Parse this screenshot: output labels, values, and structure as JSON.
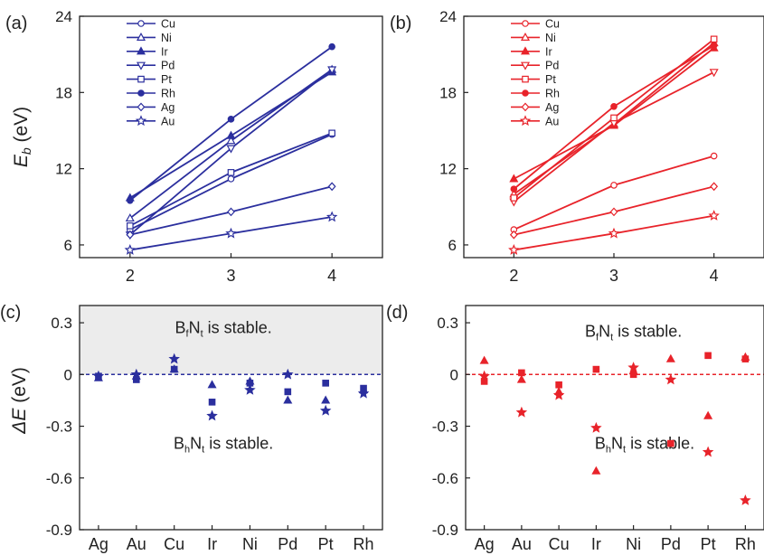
{
  "chart_data": [
    {
      "panel_label": "(a)",
      "type": "line",
      "color": "#2b2f9e",
      "ylabel_main": "E",
      "ylabel_sub": "b",
      "ylabel_unit": " (eV)",
      "x": [
        2,
        3,
        4
      ],
      "xlim": [
        1.5,
        4.5
      ],
      "ylim": [
        5,
        24
      ],
      "x_ticks": [
        2,
        3,
        4
      ],
      "y_ticks": [
        6,
        12,
        18,
        24
      ],
      "legend_position": "top-left",
      "series": [
        {
          "name": "Cu",
          "marker": "circle-open",
          "values": [
            7.2,
            11.2,
            14.7
          ]
        },
        {
          "name": "Ni",
          "marker": "triangle-up-open",
          "values": [
            8.1,
            14.2,
            19.8
          ]
        },
        {
          "name": "Ir",
          "marker": "triangle-up-filled",
          "values": [
            9.7,
            14.6,
            19.6
          ]
        },
        {
          "name": "Pd",
          "marker": "triangle-down-open",
          "values": [
            6.8,
            13.6,
            19.8
          ]
        },
        {
          "name": "Pt",
          "marker": "square-open",
          "values": [
            7.5,
            11.7,
            14.8
          ]
        },
        {
          "name": "Rh",
          "marker": "circle-filled",
          "values": [
            9.5,
            15.9,
            21.6
          ]
        },
        {
          "name": "Ag",
          "marker": "diamond-open",
          "values": [
            6.8,
            8.6,
            10.6
          ]
        },
        {
          "name": "Au",
          "marker": "star-open",
          "values": [
            5.6,
            6.9,
            8.2
          ]
        }
      ]
    },
    {
      "panel_label": "(b)",
      "type": "line",
      "color": "#e8232a",
      "x": [
        2,
        3,
        4
      ],
      "xlim": [
        1.5,
        4.5
      ],
      "ylim": [
        5,
        24
      ],
      "x_ticks": [
        2,
        3,
        4
      ],
      "y_ticks": [
        6,
        12,
        18,
        24
      ],
      "legend_position": "top-left",
      "series": [
        {
          "name": "Cu",
          "marker": "circle-open",
          "values": [
            7.2,
            10.7,
            13.0
          ]
        },
        {
          "name": "Ni",
          "marker": "triangle-up-open",
          "values": [
            10.0,
            15.5,
            21.9
          ]
        },
        {
          "name": "Ir",
          "marker": "triangle-up-filled",
          "values": [
            11.2,
            15.4,
            21.5
          ]
        },
        {
          "name": "Pd",
          "marker": "triangle-down-open",
          "values": [
            9.4,
            15.6,
            19.6
          ]
        },
        {
          "name": "Pt",
          "marker": "square-open",
          "values": [
            9.7,
            16.0,
            22.2
          ]
        },
        {
          "name": "Rh",
          "marker": "circle-filled",
          "values": [
            10.4,
            16.9,
            21.7
          ]
        },
        {
          "name": "Ag",
          "marker": "diamond-open",
          "values": [
            6.8,
            8.6,
            10.6
          ]
        },
        {
          "name": "Au",
          "marker": "star-open",
          "values": [
            5.6,
            6.9,
            8.3
          ]
        }
      ]
    },
    {
      "panel_label": "(c)",
      "type": "scatter",
      "color": "#2b2f9e",
      "ylabel_main": "ΔE",
      "ylabel_unit": " (eV)",
      "categories": [
        "Ag",
        "Au",
        "Cu",
        "Ir",
        "Ni",
        "Pd",
        "Pt",
        "Rh"
      ],
      "ylim": [
        -0.9,
        0.4
      ],
      "y_ticks": [
        0.3,
        0,
        -0.3,
        -0.6,
        -0.9
      ],
      "y_tick_labels": [
        "0.3",
        "0",
        "-0.3",
        "-0.6",
        "-0.9"
      ],
      "shaded_above": 0,
      "annotations": [
        {
          "main": "B",
          "sub": "f",
          "main2": "N",
          "sub2": "t",
          "tail": " is stable.",
          "at": [
            3.3,
            0.24
          ]
        },
        {
          "main": "B",
          "sub": "h",
          "main2": "N",
          "sub2": "t",
          "tail": " is stable.",
          "at": [
            3.3,
            -0.43
          ]
        }
      ],
      "series": [
        {
          "marker": "square-filled",
          "values": [
            -0.01,
            -0.03,
            0.03,
            -0.16,
            -0.05,
            -0.1,
            -0.05,
            -0.08
          ]
        },
        {
          "marker": "triangle-up-filled",
          "values": [
            -0.02,
            -0.01,
            0.03,
            -0.06,
            -0.04,
            -0.15,
            -0.15,
            -0.09
          ]
        },
        {
          "marker": "star-filled",
          "values": [
            -0.01,
            0.0,
            0.09,
            -0.24,
            -0.09,
            0.0,
            -0.21,
            -0.11
          ]
        }
      ]
    },
    {
      "panel_label": "(d)",
      "type": "scatter",
      "color": "#e8232a",
      "categories": [
        "Ag",
        "Au",
        "Cu",
        "Ir",
        "Ni",
        "Pd",
        "Pt",
        "Rh"
      ],
      "ylim": [
        -0.9,
        0.4
      ],
      "y_ticks": [
        0.3,
        0,
        -0.3,
        -0.6,
        -0.9
      ],
      "y_tick_labels": [
        "0.3",
        "0",
        "-0.3",
        "-0.6",
        "-0.9"
      ],
      "annotations": [
        {
          "main": "B",
          "sub": "f",
          "main2": "N",
          "sub2": "t",
          "tail": " is stable.",
          "at": [
            4.0,
            0.22
          ]
        },
        {
          "main": "B",
          "sub": "h",
          "main2": "N",
          "sub2": "t",
          "tail": " is stable.",
          "at": [
            4.3,
            -0.43
          ]
        }
      ],
      "series": [
        {
          "marker": "square-filled",
          "values": [
            -0.04,
            0.01,
            -0.06,
            0.03,
            0.0,
            -0.4,
            0.11,
            0.09
          ]
        },
        {
          "marker": "triangle-up-filled",
          "values": [
            0.08,
            -0.03,
            -0.1,
            -0.56,
            0.02,
            0.09,
            -0.24,
            0.1
          ]
        },
        {
          "marker": "star-filled",
          "values": [
            -0.01,
            -0.22,
            -0.12,
            -0.31,
            0.04,
            -0.03,
            -0.45,
            -0.73
          ]
        }
      ]
    }
  ]
}
